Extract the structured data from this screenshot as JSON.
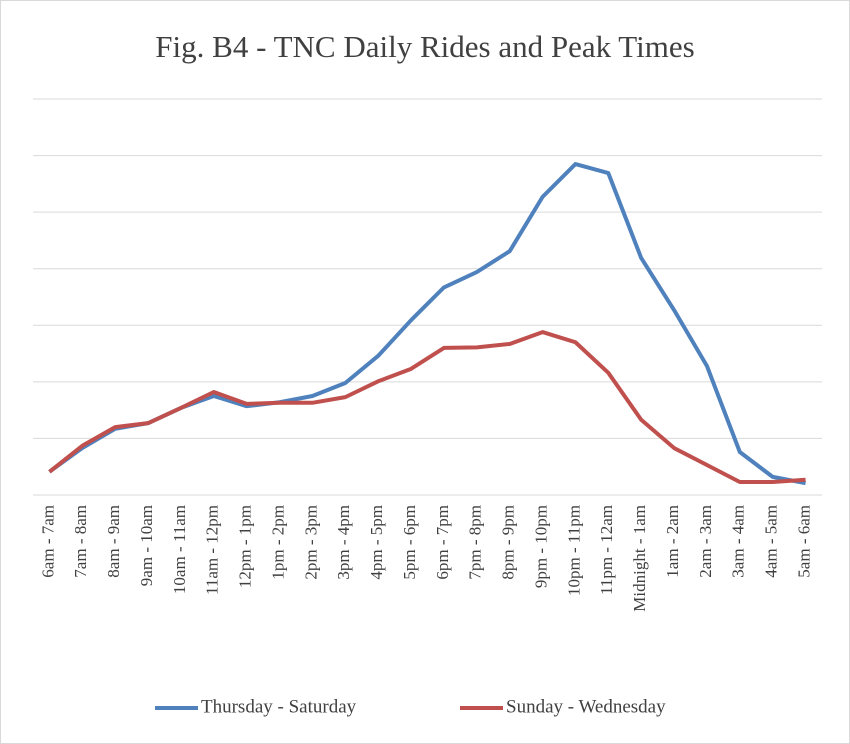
{
  "chart_data": {
    "type": "line",
    "title": "Fig. B4 - TNC Daily Rides and Peak Times",
    "categories": [
      "6am - 7am",
      "7am - 8am",
      "8am - 9am",
      "9am - 10am",
      "10am - 11am",
      "11am - 12pm",
      "12pm - 1pm",
      "1pm - 2pm",
      "2pm - 3pm",
      "3pm - 4pm",
      "4pm - 5pm",
      "5pm - 6pm",
      "6pm - 7pm",
      "7pm - 8pm",
      "8pm - 9pm",
      "9pm - 10pm",
      "10pm - 11pm",
      "11pm - 12am",
      "Midnight - 1am",
      "1am - 2am",
      "2am - 3am",
      "3am - 4am",
      "4am - 5am",
      "5am - 6am"
    ],
    "series": [
      {
        "name": "Thursday - Saturday",
        "color": "#4f81bd",
        "values": [
          0.41,
          0.83,
          1.17,
          1.27,
          1.54,
          1.75,
          1.57,
          1.64,
          1.75,
          1.98,
          2.46,
          3.09,
          3.67,
          3.94,
          4.31,
          5.27,
          5.85,
          5.69,
          4.19,
          3.27,
          2.28,
          0.76,
          0.32,
          0.21
        ]
      },
      {
        "name": "Sunday - Wednesday",
        "color": "#c0504d",
        "values": [
          0.41,
          0.87,
          1.2,
          1.27,
          1.54,
          1.82,
          1.61,
          1.63,
          1.63,
          1.73,
          2.01,
          2.23,
          2.6,
          2.61,
          2.67,
          2.88,
          2.7,
          2.16,
          1.33,
          0.83,
          0.53,
          0.23,
          0.23,
          0.27
        ]
      }
    ],
    "ylim": [
      0,
      7
    ],
    "yticks": [
      0,
      1,
      2,
      3,
      4,
      5,
      6,
      7
    ],
    "grid": true,
    "legend": "bottom"
  }
}
